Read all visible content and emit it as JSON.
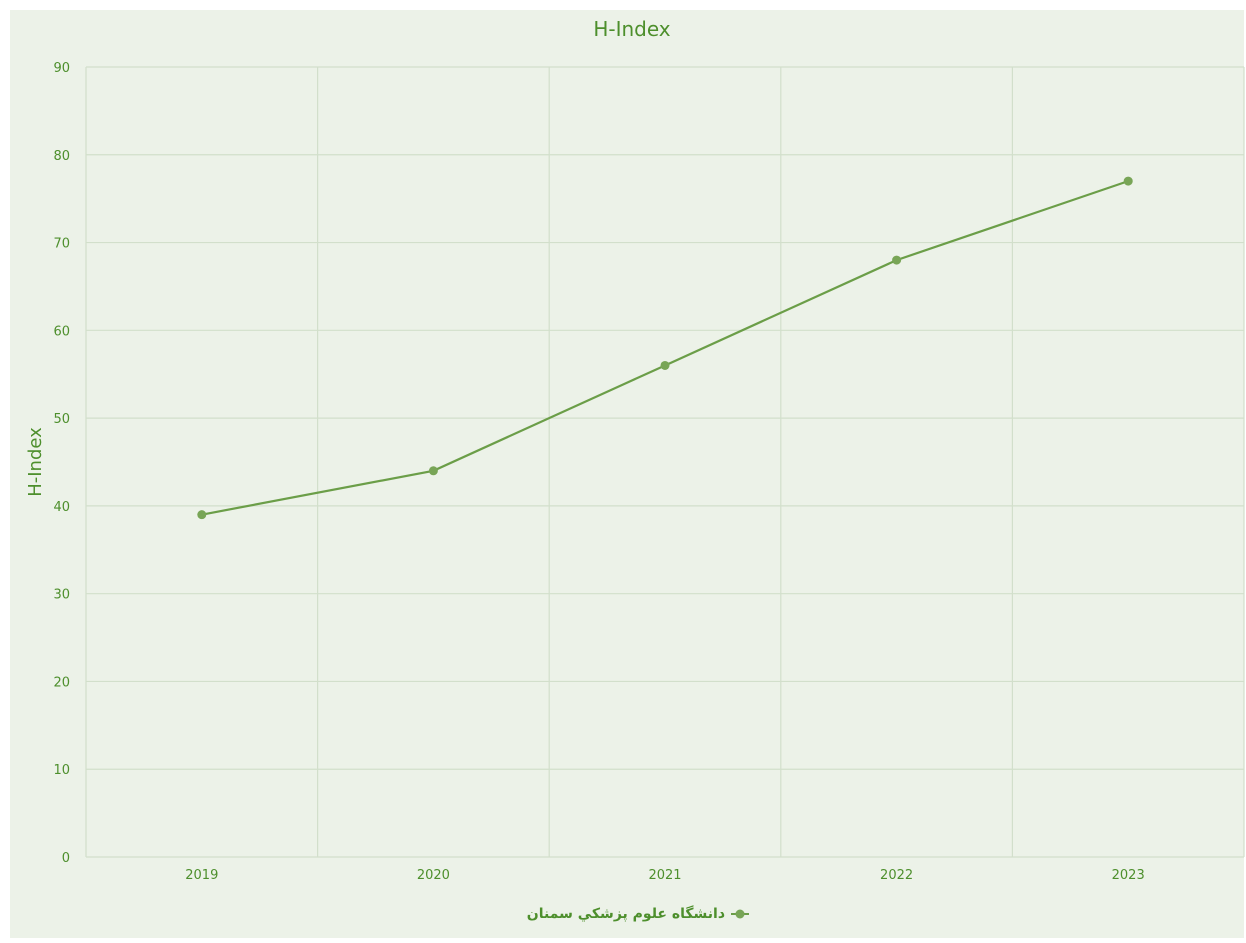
{
  "colors": {
    "background": "#ecf2e8",
    "grid": "#d2dfcb",
    "text": "#4d8f2c",
    "line": "#6b9e48",
    "marker": "#78a556"
  },
  "chart_data": {
    "type": "line",
    "title": "H-Index",
    "xlabel": "",
    "ylabel": "H-Index",
    "categories": [
      "2019",
      "2020",
      "2021",
      "2022",
      "2023"
    ],
    "series": [
      {
        "name": "دانشگاه علوم پزشكي سمنان",
        "values": [
          39,
          44,
          56,
          68,
          77
        ]
      }
    ],
    "ylim": [
      0,
      90
    ],
    "yticks": [
      0,
      10,
      20,
      30,
      40,
      50,
      60,
      70,
      80,
      90
    ],
    "grid": true,
    "legend_position": "bottom-center"
  }
}
